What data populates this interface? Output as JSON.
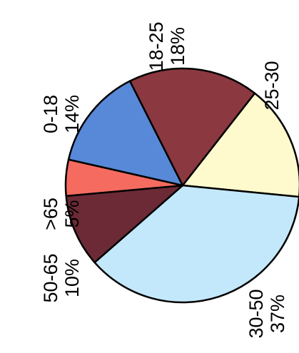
{
  "chart_data": {
    "type": "pie",
    "title": "",
    "slices": [
      {
        "label": "25-30",
        "value": "16%",
        "percent": 16,
        "color": "#fffacd"
      },
      {
        "label": "30-50",
        "value": "37%",
        "percent": 37,
        "color": "#c4e8fb"
      },
      {
        "label": "50-65",
        "value": "10%",
        "percent": 10,
        "color": "#6b2a35"
      },
      {
        "label": ">65",
        "value": "5%",
        "percent": 5,
        "color": "#f56b60"
      },
      {
        "label": "0-18",
        "value": "14%",
        "percent": 14,
        "color": "#5889d8"
      },
      {
        "label": "18-25",
        "value": "18%",
        "percent": 18,
        "color": "#8b3840"
      }
    ],
    "label_orientation": "rotated 90° counter-clockwise"
  }
}
